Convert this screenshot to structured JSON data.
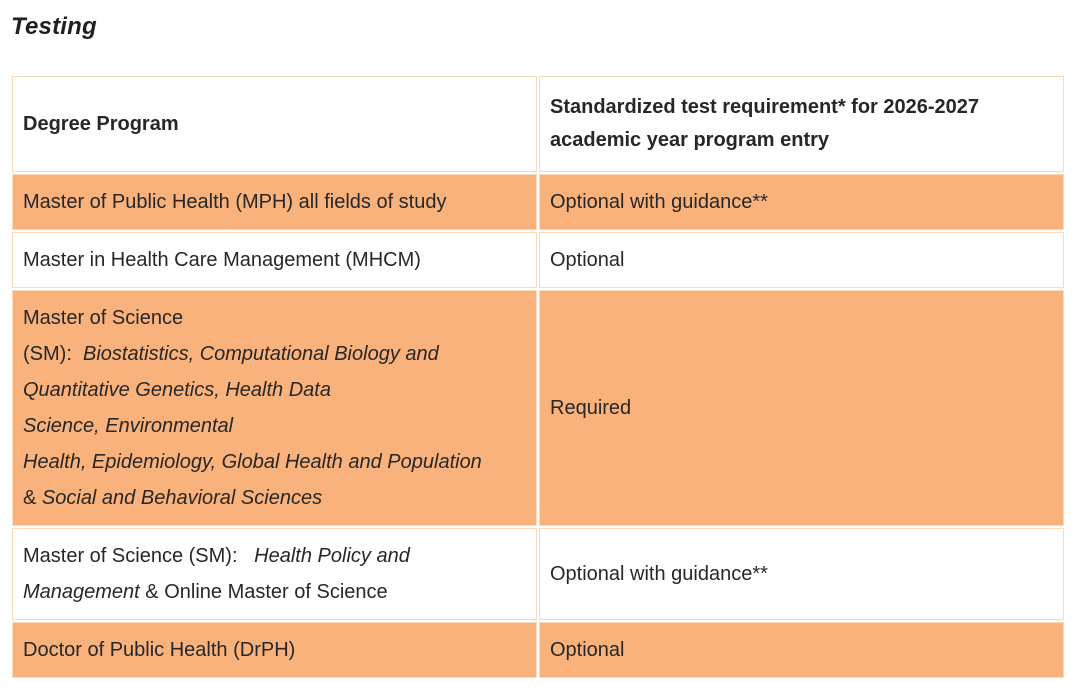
{
  "page": {
    "title": "Testing"
  },
  "colors": {
    "row_orange": "#f9b27b",
    "row_white": "#ffffff",
    "cell_border": "#fcd9b8",
    "text": "#272727"
  },
  "table": {
    "columns": [
      {
        "label": "Degree Program"
      },
      {
        "label": "Standardized test requirement* for 2026-2027 academic year program entry"
      }
    ],
    "rows": [
      {
        "shade": "orange",
        "program": [
          [
            {
              "text": "Master of Public Health (MPH) all fields of study",
              "italic": false
            }
          ]
        ],
        "requirement": "Optional with guidance**"
      },
      {
        "shade": "white",
        "program": [
          [
            {
              "text": "Master in Health Care Management (MHCM)",
              "italic": false
            }
          ]
        ],
        "requirement": "Optional"
      },
      {
        "shade": "orange",
        "program": [
          [
            {
              "text": "Master of Science",
              "italic": false
            }
          ],
          [
            {
              "text": "(SM):  ",
              "italic": false
            },
            {
              "text": "Biostatistics, Computational Biology and",
              "italic": true
            }
          ],
          [
            {
              "text": "Quantitative Genetics, Health Data",
              "italic": true
            }
          ],
          [
            {
              "text": "Science, Environmental",
              "italic": true
            }
          ],
          [
            {
              "text": "Health, Epidemiology, Global Health and Population",
              "italic": true
            }
          ],
          [
            {
              "text": "& ",
              "italic": false
            },
            {
              "text": "Social and Behavioral Sciences",
              "italic": true
            }
          ]
        ],
        "requirement": "Required"
      },
      {
        "shade": "white",
        "program": [
          [
            {
              "text": "Master of Science (SM):   ",
              "italic": false
            },
            {
              "text": "Health Policy and",
              "italic": true
            }
          ],
          [
            {
              "text": "Management",
              "italic": true
            },
            {
              "text": " & Online Master of Science",
              "italic": false
            }
          ]
        ],
        "requirement": "Optional with guidance**"
      },
      {
        "shade": "orange",
        "program": [
          [
            {
              "text": "Doctor of Public Health (DrPH)",
              "italic": false
            }
          ]
        ],
        "requirement": "Optional"
      }
    ]
  }
}
